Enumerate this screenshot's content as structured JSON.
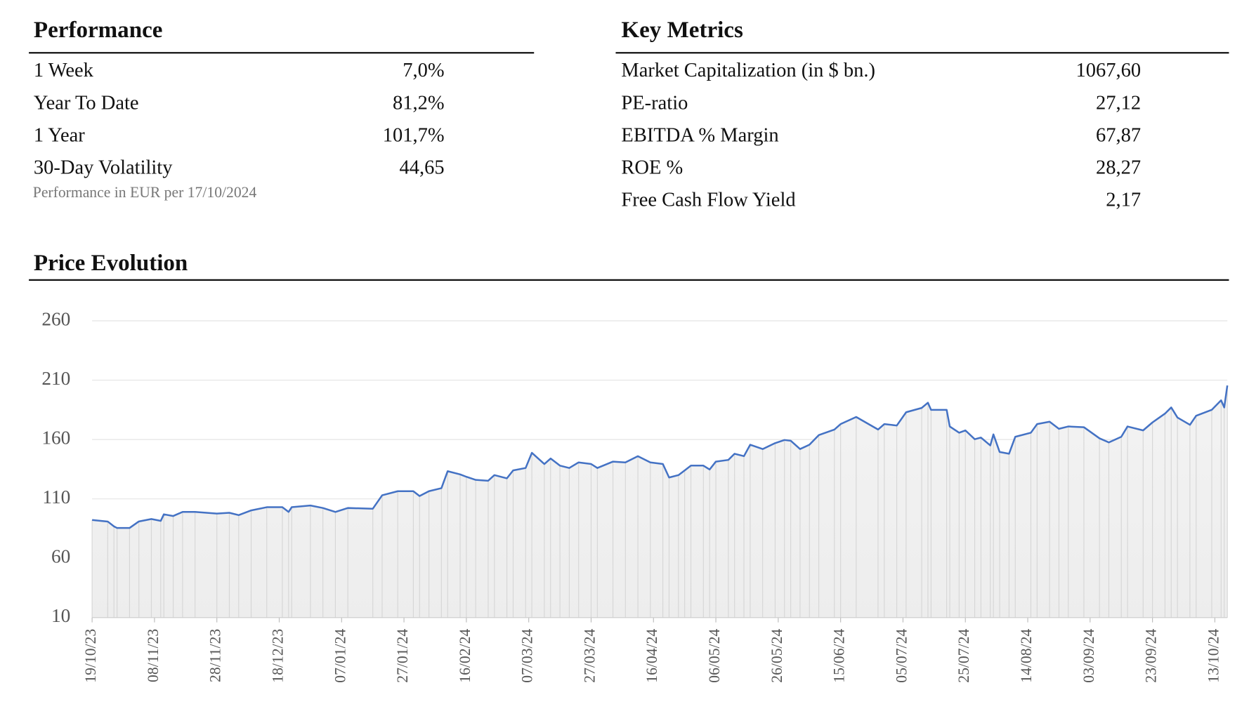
{
  "performance": {
    "title": "Performance",
    "rows": [
      [
        "1 Week",
        "7,0%"
      ],
      [
        "Year To Date",
        "81,2%"
      ],
      [
        "1 Year",
        "101,7%"
      ],
      [
        "30-Day Volatility",
        "44,65"
      ]
    ],
    "note": "Performance in EUR per 17/10/2024"
  },
  "key_metrics": {
    "title": "Key Metrics",
    "rows": [
      [
        "Market Capitalization (in $ bn.)",
        "1067,60"
      ],
      [
        "PE-ratio",
        "27,12"
      ],
      [
        "EBITDA % Margin",
        "67,87"
      ],
      [
        "ROE %",
        "28,27"
      ],
      [
        "Free Cash Flow Yield",
        "2,17"
      ]
    ]
  },
  "chart_data": {
    "type": "line",
    "title": "Price Evolution",
    "color": "#4472c4",
    "grid": true,
    "ylim": [
      10,
      260
    ],
    "yticks": [
      10,
      60,
      110,
      160,
      210,
      260
    ],
    "xlim": [
      "19/10/23",
      "17/10/24"
    ],
    "xticks": [
      "19/10/23",
      "08/11/23",
      "28/11/23",
      "18/12/23",
      "07/01/24",
      "27/01/24",
      "16/02/24",
      "07/03/24",
      "27/03/24",
      "16/04/24",
      "06/05/24",
      "26/05/24",
      "15/06/24",
      "05/07/24",
      "25/07/24",
      "14/08/24",
      "03/09/24",
      "23/09/24",
      "13/10/24"
    ],
    "x": [
      "19/10/23",
      "24/10/23",
      "26/10/23",
      "27/10/23",
      "31/10/23",
      "03/11/23",
      "07/11/23",
      "10/11/23",
      "11/11/23",
      "14/11/23",
      "17/11/23",
      "21/11/23",
      "28/11/23",
      "02/12/23",
      "05/12/23",
      "09/12/23",
      "14/12/23",
      "19/12/23",
      "21/12/23",
      "22/12/23",
      "28/12/23",
      "01/01/24",
      "05/01/24",
      "09/01/24",
      "17/01/24",
      "20/01/24",
      "25/01/24",
      "30/01/24",
      "01/02/24",
      "04/02/24",
      "08/02/24",
      "10/02/24",
      "14/02/24",
      "16/02/24",
      "19/02/24",
      "23/02/24",
      "25/02/24",
      "29/02/24",
      "02/03/24",
      "06/03/24",
      "08/03/24",
      "12/03/24",
      "14/03/24",
      "17/03/24",
      "20/03/24",
      "23/03/24",
      "27/03/24",
      "29/03/24",
      "03/04/24",
      "07/04/24",
      "11/04/24",
      "15/04/24",
      "19/04/24",
      "21/04/24",
      "24/04/24",
      "26/04/24",
      "28/04/24",
      "02/05/24",
      "04/05/24",
      "06/05/24",
      "10/05/24",
      "12/05/24",
      "15/05/24",
      "17/05/24",
      "21/05/24",
      "25/05/24",
      "28/05/24",
      "30/05/24",
      "02/06/24",
      "05/06/24",
      "08/06/24",
      "13/06/24",
      "15/06/24",
      "20/06/24",
      "27/06/24",
      "29/06/24",
      "03/07/24",
      "06/07/24",
      "11/07/24",
      "13/07/24",
      "14/07/24",
      "19/07/24",
      "20/07/24",
      "23/07/24",
      "25/07/24",
      "28/07/24",
      "30/07/24",
      "02/08/24",
      "03/08/24",
      "05/08/24",
      "08/08/24",
      "10/08/24",
      "15/08/24",
      "17/08/24",
      "21/08/24",
      "24/08/24",
      "27/08/24",
      "01/09/24",
      "06/09/24",
      "09/09/24",
      "13/09/24",
      "15/09/24",
      "20/09/24",
      "23/09/24",
      "27/09/24",
      "29/09/24",
      "01/10/24",
      "05/10/24",
      "07/10/24",
      "12/10/24",
      "15/10/24",
      "16/10/24",
      "17/10/24"
    ],
    "values": [
      92.2,
      90.9,
      86.8,
      85.5,
      85.5,
      91,
      93,
      91.5,
      97,
      95.6,
      99,
      99,
      97.6,
      98.3,
      96.3,
      100.3,
      103,
      103,
      99,
      103,
      104.4,
      102.3,
      99,
      102.3,
      101.7,
      113,
      116.5,
      116.5,
      112.4,
      116.5,
      119,
      133.3,
      130.6,
      128.6,
      126,
      125.3,
      130,
      127.3,
      134,
      136,
      148.8,
      139.4,
      144,
      138,
      136,
      140.7,
      139.4,
      136,
      141.4,
      140.7,
      146,
      140.7,
      139.4,
      128,
      130,
      134,
      138,
      138,
      134.7,
      141.4,
      142.8,
      148,
      146,
      155.6,
      152,
      157,
      159.6,
      159,
      152,
      155.6,
      163.7,
      168.4,
      173,
      179,
      168.4,
      173,
      171.8,
      183,
      186.6,
      191,
      185,
      185,
      171,
      165.7,
      167.7,
      160.3,
      161.6,
      155,
      164.3,
      149.5,
      148,
      162.3,
      165.7,
      173,
      175,
      169,
      171,
      170.4,
      161,
      157.6,
      162.3,
      171,
      167.7,
      174.4,
      181.8,
      187,
      178.5,
      172.4,
      180,
      185,
      193,
      187,
      205.5
    ]
  }
}
